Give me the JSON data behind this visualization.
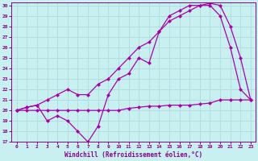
{
  "bg_color": "#c8f0f0",
  "grid_color": "#b0dede",
  "line_color": "#aa00aa",
  "xlabel": "Windchill (Refroidissement éolien,°C)",
  "xlim": [
    -0.5,
    23.5
  ],
  "ylim": [
    17,
    30.3
  ],
  "yticks": [
    17,
    18,
    19,
    20,
    21,
    22,
    23,
    24,
    25,
    26,
    27,
    28,
    29,
    30
  ],
  "xticks": [
    0,
    1,
    2,
    3,
    4,
    5,
    6,
    7,
    8,
    9,
    10,
    11,
    12,
    13,
    14,
    15,
    16,
    17,
    18,
    19,
    20,
    21,
    22,
    23
  ],
  "line1_x": [
    0,
    1,
    2,
    3,
    4,
    5,
    6,
    7,
    8,
    9,
    10,
    11,
    12,
    13,
    14,
    15,
    16,
    17,
    18,
    19,
    20,
    21,
    22,
    23
  ],
  "line1_y": [
    20.0,
    20.3,
    20.5,
    19.0,
    19.5,
    19.0,
    18.0,
    17.0,
    18.5,
    21.5,
    23.0,
    23.5,
    25.0,
    24.5,
    27.5,
    29.0,
    29.5,
    30.0,
    30.0,
    30.0,
    29.0,
    26.0,
    22.0,
    21.0
  ],
  "line2_x": [
    0,
    1,
    2,
    3,
    4,
    5,
    6,
    7,
    8,
    9,
    10,
    11,
    12,
    13,
    14,
    15,
    16,
    17,
    18,
    19,
    20,
    21,
    22,
    23
  ],
  "line2_y": [
    20.0,
    20.3,
    20.5,
    21.0,
    21.5,
    22.0,
    21.5,
    21.5,
    22.5,
    23.0,
    24.0,
    25.0,
    26.0,
    26.5,
    27.5,
    28.5,
    29.0,
    29.5,
    30.0,
    30.2,
    30.0,
    28.0,
    25.0,
    21.0
  ],
  "line3_x": [
    0,
    1,
    2,
    3,
    4,
    5,
    6,
    7,
    8,
    9,
    10,
    11,
    12,
    13,
    14,
    15,
    16,
    17,
    18,
    19,
    20,
    21,
    22,
    23
  ],
  "line3_y": [
    20.0,
    20.0,
    20.0,
    20.0,
    20.0,
    20.0,
    20.0,
    20.0,
    20.0,
    20.0,
    20.0,
    20.2,
    20.3,
    20.4,
    20.4,
    20.5,
    20.5,
    20.5,
    20.6,
    20.7,
    21.0,
    21.0,
    21.0,
    21.0
  ]
}
